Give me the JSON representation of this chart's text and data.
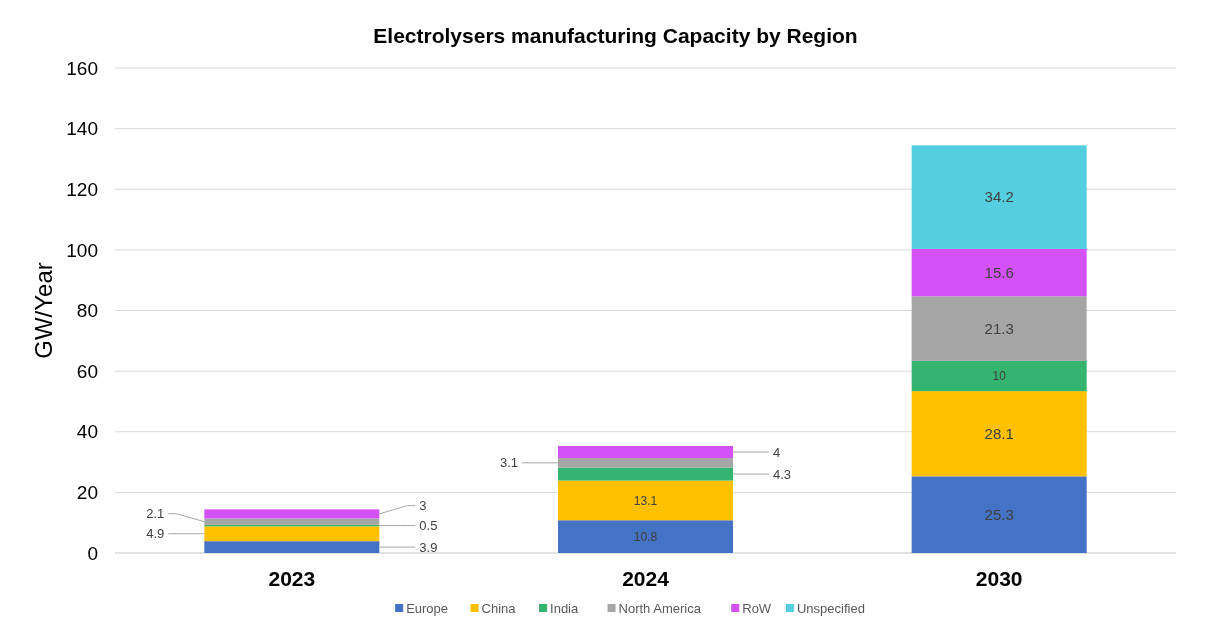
{
  "chart_data": {
    "type": "bar",
    "title": "Electrolysers manufacturing Capacity by Region",
    "ylabel": "GW/Year",
    "categories": [
      "2023",
      "2024",
      "2030"
    ],
    "series": [
      {
        "name": "Europe",
        "color": "#4472c4",
        "values": [
          3.9,
          10.8,
          25.3
        ]
      },
      {
        "name": "China",
        "color": "#ffc000",
        "values": [
          4.9,
          13.1,
          28.1
        ]
      },
      {
        "name": "India",
        "color": "#33b56f",
        "values": [
          0.5,
          4.3,
          10
        ]
      },
      {
        "name": "North America",
        "color": "#a5a5a5",
        "values": [
          2.1,
          3.1,
          21.3
        ]
      },
      {
        "name": "RoW",
        "color": "#d452f5",
        "values": [
          3,
          4,
          15.6
        ]
      },
      {
        "name": "Unspecified",
        "color": "#55cfdf",
        "values": [
          null,
          null,
          34.2
        ]
      }
    ],
    "stacked": true,
    "ylim": [
      0,
      160
    ],
    "yticks": [
      0,
      20,
      40,
      60,
      80,
      100,
      120,
      140,
      160
    ],
    "grid": "y",
    "legend": "bottom",
    "data_labels": true
  }
}
